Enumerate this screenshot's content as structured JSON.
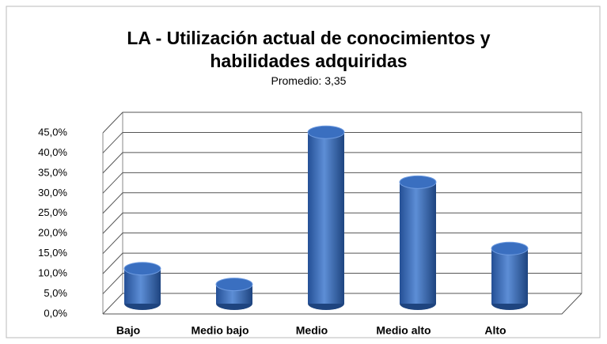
{
  "chart_data": {
    "type": "bar3d",
    "title": "LA - Utilización actual de conocimientos y habilidades adquiridas",
    "subtitle": "Promedio: 3,35",
    "categories": [
      "Bajo",
      "Medio bajo",
      "Medio",
      "Medio alto",
      "Alto"
    ],
    "values": [
      8.7,
      4.8,
      42.6,
      30.2,
      13.7
    ],
    "color": "#3a6fc0",
    "ylim": [
      0,
      45
    ],
    "yticks": [
      {
        "value": 0,
        "label": "0,0%"
      },
      {
        "value": 5,
        "label": "5,0%"
      },
      {
        "value": 10,
        "label": "10,0%"
      },
      {
        "value": 15,
        "label": "15,0%"
      },
      {
        "value": 20,
        "label": "20,0%"
      },
      {
        "value": 25,
        "label": "25,0%"
      },
      {
        "value": 30,
        "label": "30,0%"
      },
      {
        "value": 35,
        "label": "35,0%"
      },
      {
        "value": 40,
        "label": "40,0%"
      },
      {
        "value": 45,
        "label": "45,0%"
      }
    ],
    "grid": true
  }
}
